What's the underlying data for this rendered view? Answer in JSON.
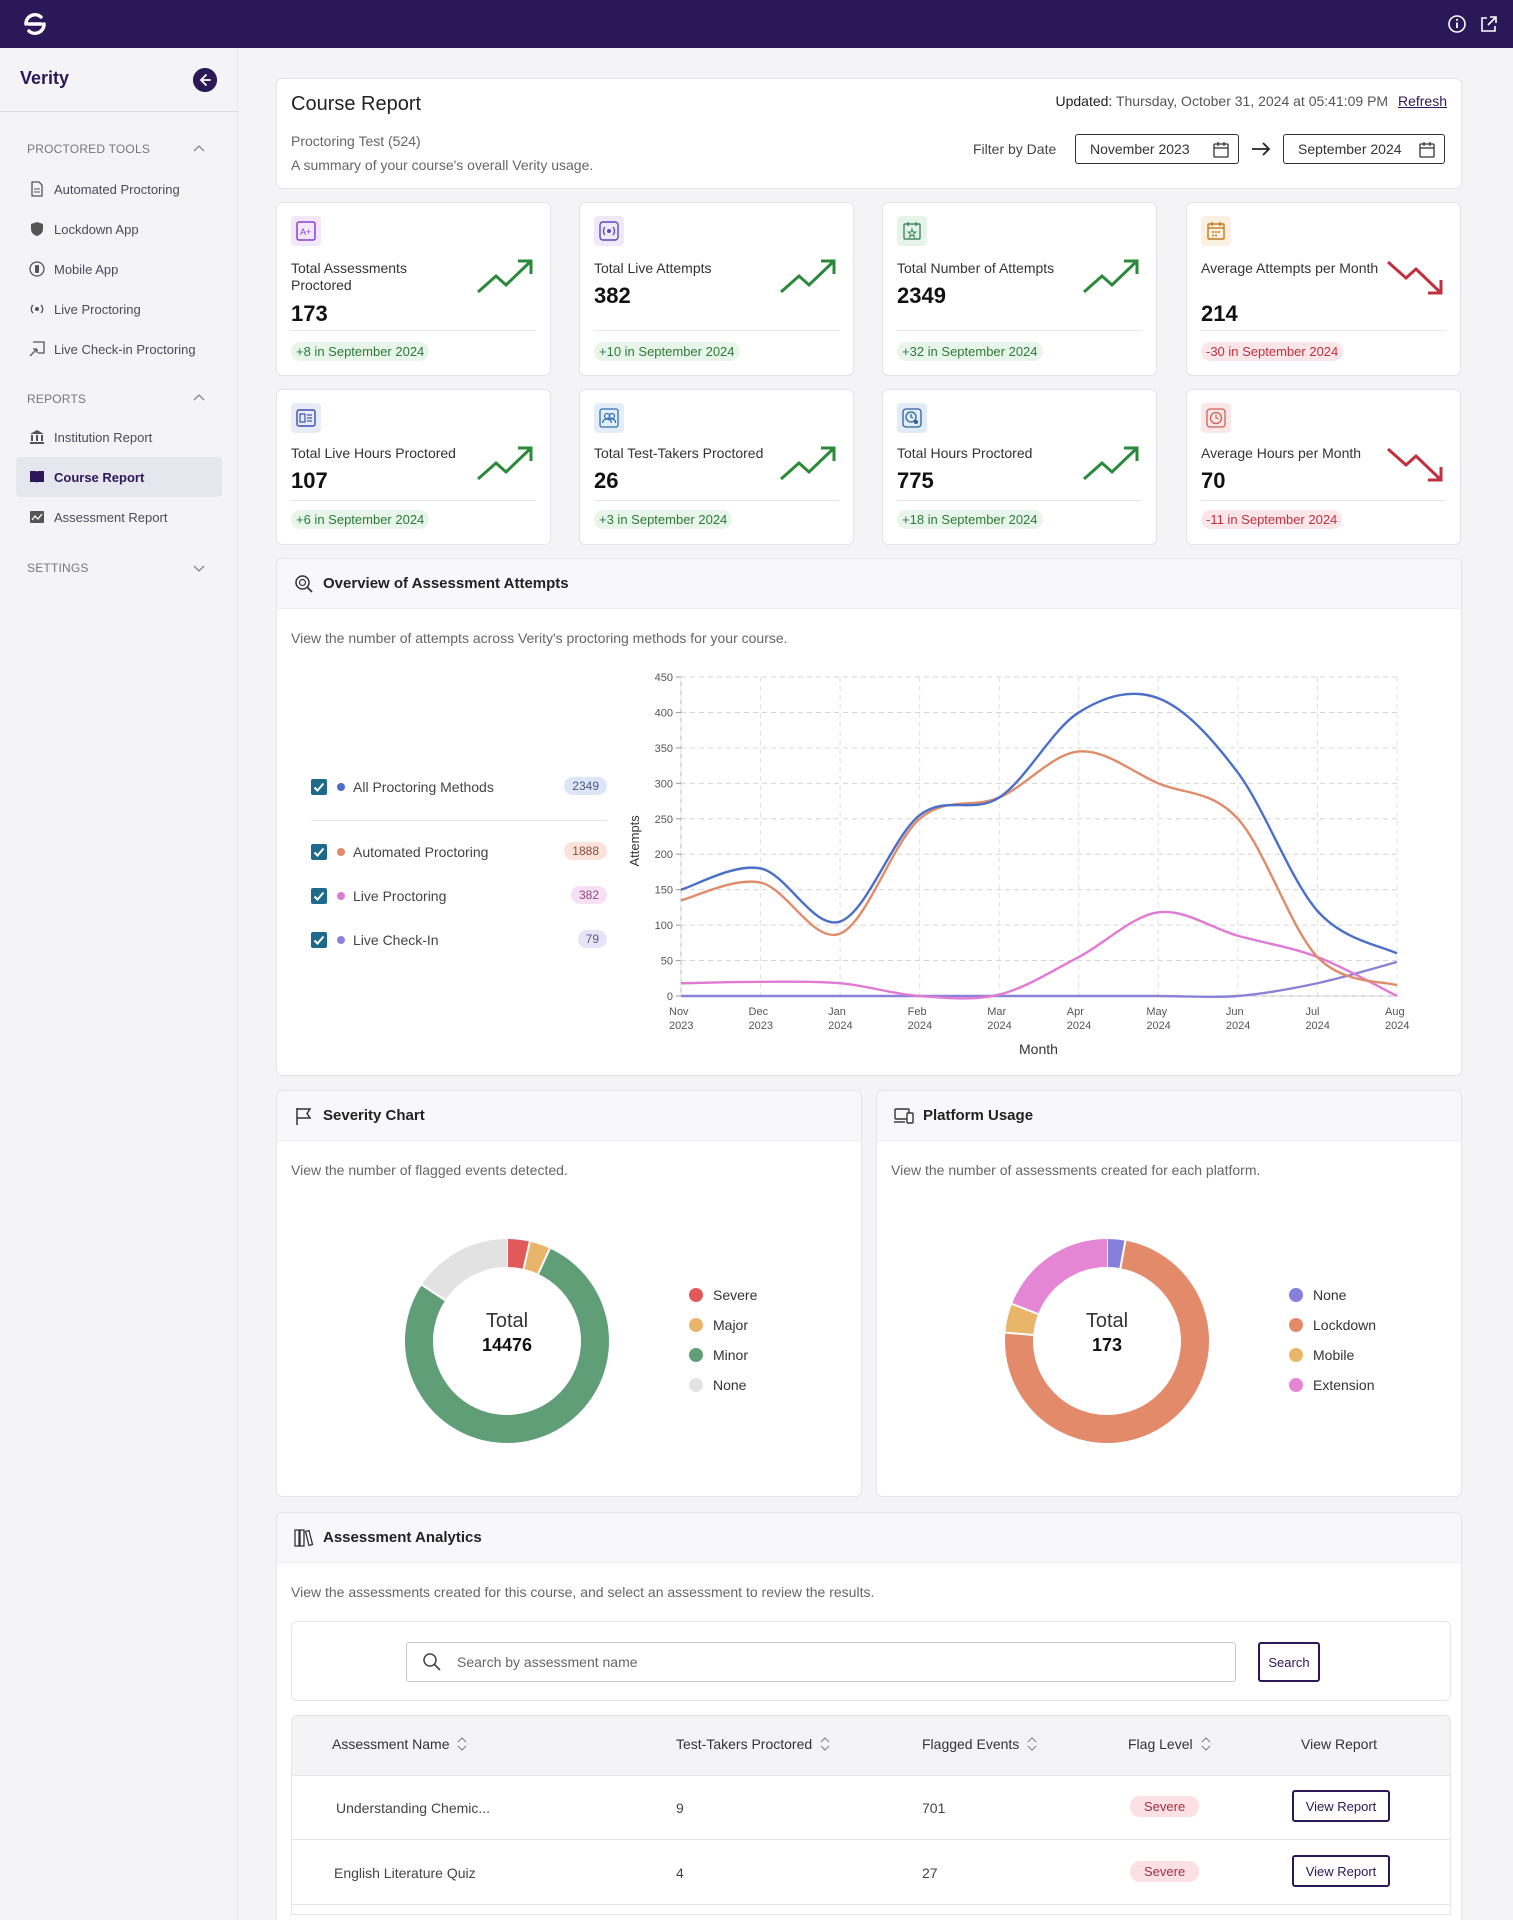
{
  "app": {
    "name": "Verity"
  },
  "sidebar": {
    "sections": [
      {
        "title": "PROCTORED TOOLS",
        "items": [
          "Automated Proctoring",
          "Lockdown App",
          "Mobile App",
          "Live Proctoring",
          "Live Check-in Proctoring"
        ]
      },
      {
        "title": "REPORTS",
        "items": [
          "Institution Report",
          "Course Report",
          "Assessment Report"
        ]
      },
      {
        "title": "SETTINGS",
        "items": []
      }
    ],
    "active_item": "Course Report"
  },
  "header": {
    "title": "Course Report",
    "course": "Proctoring Test (524)",
    "summary": "A summary of your course's overall Verity usage.",
    "updated_label": "Updated:",
    "updated_value": "Thursday, October 31, 2024 at 05:41:09 PM",
    "refresh": "Refresh",
    "filter_label": "Filter by Date",
    "date_from": "November 2023",
    "date_to": "September 2024"
  },
  "stats": [
    {
      "label": "Total Assessments Proctored",
      "value": "173",
      "change": "+8 in September 2024",
      "trend": "up",
      "color": "#8a3fd6"
    },
    {
      "label": "Total Live Attempts",
      "value": "382",
      "change": "+10 in September 2024",
      "trend": "up",
      "color": "#5b4ab8"
    },
    {
      "label": "Total Number of Attempts",
      "value": "2349",
      "change": "+32 in September 2024",
      "trend": "up",
      "color": "#3e8a5a"
    },
    {
      "label": "Average Attempts per Month",
      "value": "214",
      "change": "-30 in September 2024",
      "trend": "down",
      "color": "#c47a1f"
    },
    {
      "label": "Total Live Hours Proctored",
      "value": "107",
      "change": "+6 in September 2024",
      "trend": "up",
      "color": "#3a4fb0"
    },
    {
      "label": "Total Test-Takers Proctored",
      "value": "26",
      "change": "+3 in September 2024",
      "trend": "up",
      "color": "#2f6fb0"
    },
    {
      "label": "Total Hours Proctored",
      "value": "775",
      "change": "+18 in September 2024",
      "trend": "up",
      "color": "#2e5f9c"
    },
    {
      "label": "Average Hours per Month",
      "value": "70",
      "change": "-11 in September 2024",
      "trend": "down",
      "color": "#d0605a"
    }
  ],
  "overview": {
    "title": "Overview of Assessment Attempts",
    "description": "View the number of attempts across Verity's proctoring methods for your course.",
    "legend": [
      {
        "name": "All Proctoring Methods",
        "count": "2349",
        "color": "#4a6fc7",
        "badge_bg": "#dde6f6"
      },
      {
        "name": "Automated Proctoring",
        "count": "1888",
        "color": "#e08b6a",
        "badge_bg": "#fbe3dc"
      },
      {
        "name": "Live Proctoring",
        "count": "382",
        "color": "#e07ad4",
        "badge_bg": "#f8e0f4"
      },
      {
        "name": "Live Check-In",
        "count": "79",
        "color": "#8a82d8",
        "badge_bg": "#e6e4f6"
      }
    ]
  },
  "chart_data": {
    "type": "line",
    "xlabel": "Month",
    "ylabel": "Attempts",
    "ylim": [
      0,
      450
    ],
    "yticks": [
      0,
      50,
      100,
      150,
      200,
      250,
      300,
      350,
      400,
      450
    ],
    "x": [
      [
        "Nov",
        "2023"
      ],
      [
        "Dec",
        "2023"
      ],
      [
        "Jan",
        "2024"
      ],
      [
        "Feb",
        "2024"
      ],
      [
        "Mar",
        "2024"
      ],
      [
        "Apr",
        "2024"
      ],
      [
        "May",
        "2024"
      ],
      [
        "Jun",
        "2024"
      ],
      [
        "Jul",
        "2024"
      ],
      [
        "Aug",
        "2024"
      ]
    ],
    "series": [
      {
        "name": "All Proctoring Methods",
        "color": "#4a6fc7",
        "values": [
          150,
          180,
          105,
          255,
          280,
          400,
          420,
          315,
          120,
          60
        ]
      },
      {
        "name": "Automated Proctoring",
        "color": "#e08b6a",
        "values": [
          135,
          160,
          88,
          250,
          280,
          345,
          300,
          250,
          55,
          15
        ]
      },
      {
        "name": "Live Proctoring",
        "color": "#e07ad4",
        "values": [
          18,
          20,
          18,
          0,
          2,
          55,
          118,
          85,
          55,
          0
        ]
      },
      {
        "name": "Live Check-In",
        "color": "#8a82d8",
        "values": [
          0,
          0,
          0,
          0,
          0,
          0,
          0,
          0,
          18,
          48
        ]
      }
    ]
  },
  "severity": {
    "title": "Severity Chart",
    "description": "View the number of flagged events detected.",
    "total_label": "Total",
    "total": "14476",
    "slices": [
      {
        "name": "Severe",
        "value": 520,
        "color": "#e2595a"
      },
      {
        "name": "Major",
        "value": 480,
        "color": "#e9b56a"
      },
      {
        "name": "Minor",
        "value": 11200,
        "color": "#5f9e77"
      },
      {
        "name": "None",
        "value": 2276,
        "color": "#e2e2e2"
      }
    ]
  },
  "platform": {
    "title": "Platform Usage",
    "description": "View the number of assessments created for each platform.",
    "total_label": "Total",
    "total": "173",
    "slices": [
      {
        "name": "None",
        "value": 5,
        "color": "#8580da"
      },
      {
        "name": "Lockdown",
        "value": 127,
        "color": "#e28a6a"
      },
      {
        "name": "Mobile",
        "value": 8,
        "color": "#e9b56a"
      },
      {
        "name": "Extension",
        "value": 33,
        "color": "#e486d4"
      }
    ]
  },
  "analytics": {
    "title": "Assessment Analytics",
    "description": "View the assessments created for this course, and select an assessment to review the results.",
    "search_placeholder": "Search by assessment name",
    "search_button": "Search",
    "columns": [
      "Assessment Name",
      "Test-Takers Proctored",
      "Flagged Events",
      "Flag Level",
      "View Report"
    ],
    "rows": [
      {
        "name": "Understanding Chemic...",
        "takers": "9",
        "flagged": "701",
        "level": "Severe",
        "action": "View Report"
      },
      {
        "name": "English Literature Quiz",
        "takers": "4",
        "flagged": "27",
        "level": "Severe",
        "action": "View Report"
      }
    ]
  }
}
